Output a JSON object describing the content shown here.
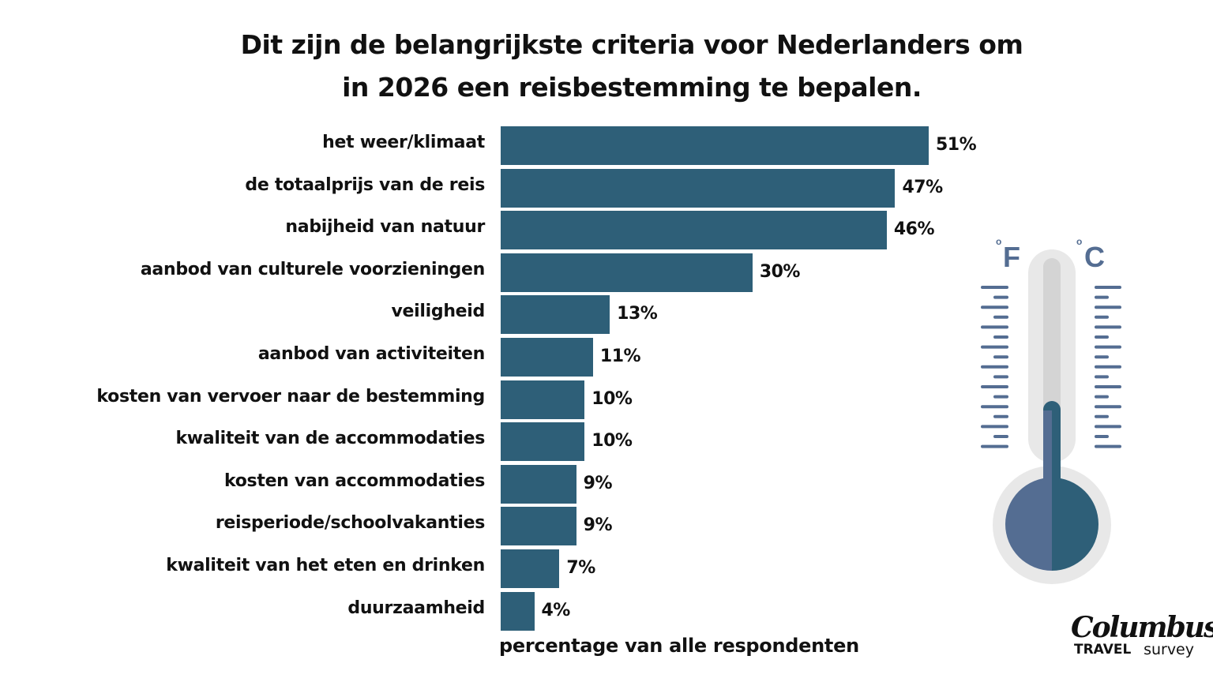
{
  "title_line1": "Dit zijn de belangrijkste criteria voor Nederlanders om",
  "title_line2": "in 2026 een reisbestemming te bepalen.",
  "chart_data": {
    "type": "bar",
    "orientation": "horizontal",
    "title": "Dit zijn de belangrijkste criteria voor Nederlanders om in 2026 een reisbestemming te bepalen.",
    "xlabel": "percentage van alle respondenten",
    "ylabel": "",
    "categories": [
      "het weer/klimaat",
      "de totaalprijs van de reis",
      "nabijheid van natuur",
      "aanbod van culturele voorzieningen",
      "veiligheid",
      "aanbod van activiteiten",
      "kosten van vervoer naar de bestemming",
      "kwaliteit van de accommodaties",
      "kosten van accommodaties",
      "reisperiode/schoolvakanties",
      "kwaliteit van het eten en drinken",
      "duurzaamheid"
    ],
    "values": [
      51,
      47,
      46,
      30,
      13,
      11,
      10,
      10,
      9,
      9,
      7,
      4
    ],
    "value_labels": [
      "51%",
      "47%",
      "46%",
      "30%",
      "13%",
      "11%",
      "10%",
      "10%",
      "9%",
      "9%",
      "7%",
      "4%"
    ],
    "grid": false,
    "bar_color": "#2e5f78"
  },
  "thermometer": {
    "f_label": "F",
    "c_label": "C",
    "degree": "o"
  },
  "logo": {
    "name": "Columbus",
    "left": "TRAVEL",
    "right": "survey"
  }
}
